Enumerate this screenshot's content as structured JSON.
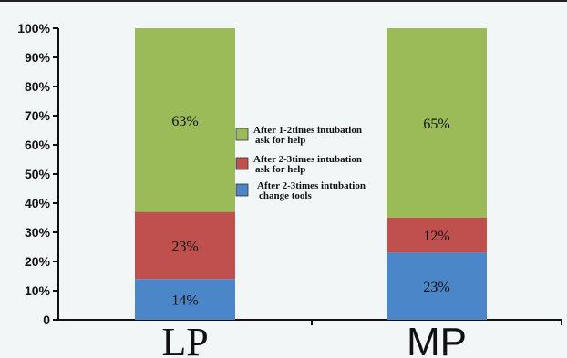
{
  "chart_data": {
    "type": "bar",
    "stacked": true,
    "categories": [
      "LP",
      "MP"
    ],
    "series": [
      {
        "name": "After 2-3times intubation change tools",
        "legend_lines": [
          "After 2-3times intubation",
          "change tools"
        ],
        "color": "#4a86c8",
        "values": [
          14,
          23
        ],
        "labels": [
          "14%",
          "23%"
        ]
      },
      {
        "name": "After 2-3times intubation ask for help",
        "legend_lines": [
          "After 2-3times intubation",
          "ask for help"
        ],
        "color": "#c0504d",
        "values": [
          23,
          12
        ],
        "labels": [
          "23%",
          "12%"
        ]
      },
      {
        "name": "After 1-2times intubation ask for help",
        "legend_lines": [
          "After 1-2times intubation",
          "ask for help"
        ],
        "color": "#9bbb59",
        "values": [
          63,
          65
        ],
        "labels": [
          "63%",
          "65%"
        ]
      }
    ],
    "yticks": [
      "0",
      "10%",
      "20%",
      "30%",
      "40%",
      "50%",
      "60%",
      "70%",
      "80%",
      "90%",
      "100%"
    ],
    "ylim": [
      0,
      100
    ],
    "title": "",
    "xlabel": "",
    "ylabel": "",
    "legend_position": "center",
    "grid": false
  }
}
